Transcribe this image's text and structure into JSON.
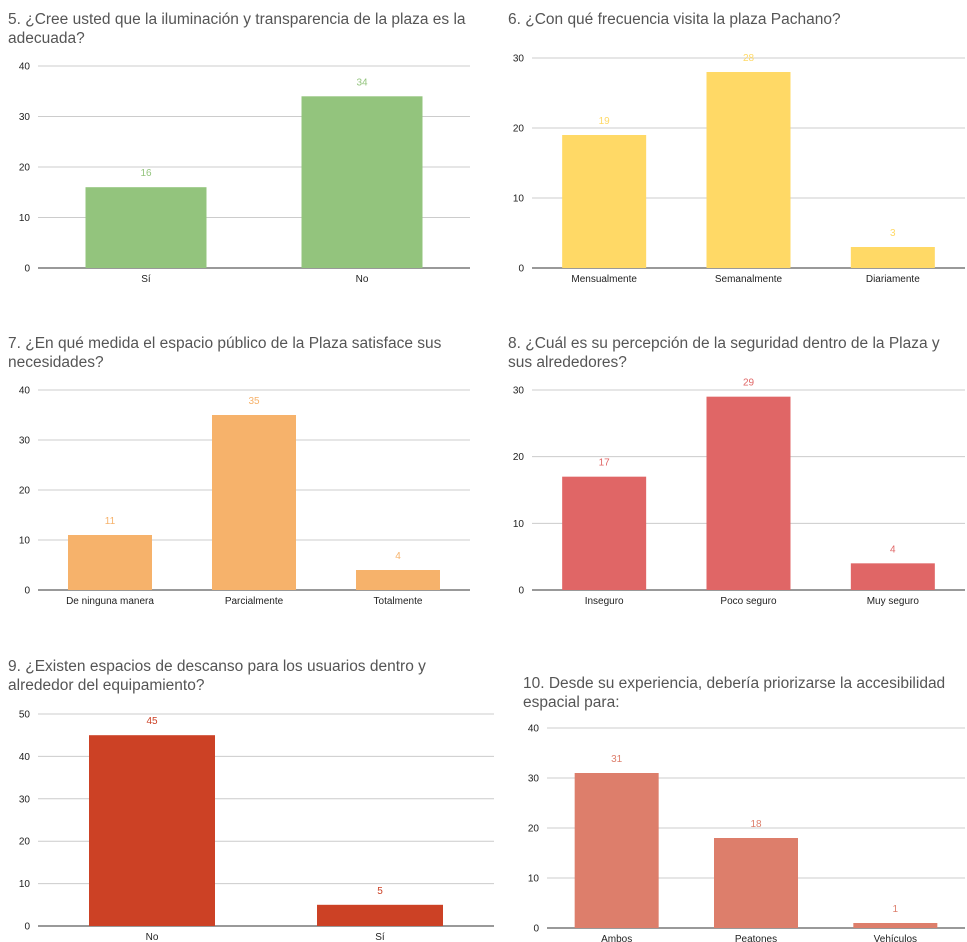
{
  "chart_data": [
    {
      "type": "bar",
      "title": "5. ¿Cree usted que la iluminación y transparencia de la plaza es la adecuada?",
      "categories": [
        "Sí",
        "No"
      ],
      "values": [
        16,
        34
      ],
      "ylim": [
        0,
        40
      ],
      "yticks": [
        "0",
        "10",
        "20",
        "30",
        "40"
      ],
      "color": "#93c47d",
      "grid": true
    },
    {
      "type": "bar",
      "title": "6. ¿Con qué frecuencia visita la plaza Pachano?",
      "categories": [
        "Mensualmente",
        "Semanalmente",
        "Diariamente"
      ],
      "values": [
        19,
        28,
        3
      ],
      "ylim": [
        0,
        30
      ],
      "yticks": [
        "0",
        "10",
        "20",
        "30"
      ],
      "color": "#ffd966",
      "grid": true
    },
    {
      "type": "bar",
      "title": "7. ¿En qué medida el espacio público de la Plaza satisface sus necesidades?",
      "categories": [
        "De ninguna manera",
        "Parcialmente",
        "Totalmente"
      ],
      "values": [
        11,
        35,
        4
      ],
      "ylim": [
        0,
        40
      ],
      "yticks": [
        "0",
        "10",
        "20",
        "30",
        "40"
      ],
      "color": "#f6b26b",
      "grid": true
    },
    {
      "type": "bar",
      "title": "8. ¿Cuál es su percepción de la seguridad dentro de la Plaza y sus alrededores?",
      "categories": [
        "Inseguro",
        "Poco seguro",
        "Muy seguro"
      ],
      "values": [
        17,
        29,
        4
      ],
      "ylim": [
        0,
        30
      ],
      "yticks": [
        "0",
        "10",
        "20",
        "30"
      ],
      "color": "#e06666",
      "grid": true
    },
    {
      "type": "bar",
      "title": "9. ¿Existen espacios de descanso para los usuarios dentro y alrededor del equipamiento?",
      "categories": [
        "No",
        "Sí"
      ],
      "values": [
        45,
        5
      ],
      "ylim": [
        0,
        50
      ],
      "yticks": [
        "0",
        "10",
        "20",
        "30",
        "40",
        "50"
      ],
      "color": "#cc4125",
      "grid": true
    },
    {
      "type": "bar",
      "title": "10. Desde su experiencia, debería priorizarse la accesibilidad espacial para:",
      "categories": [
        "Ambos",
        "Peatones",
        "Vehículos"
      ],
      "values": [
        31,
        18,
        1
      ],
      "ylim": [
        0,
        40
      ],
      "yticks": [
        "0",
        "10",
        "20",
        "30",
        "40"
      ],
      "color": "#dd7e6b",
      "grid": true
    }
  ]
}
